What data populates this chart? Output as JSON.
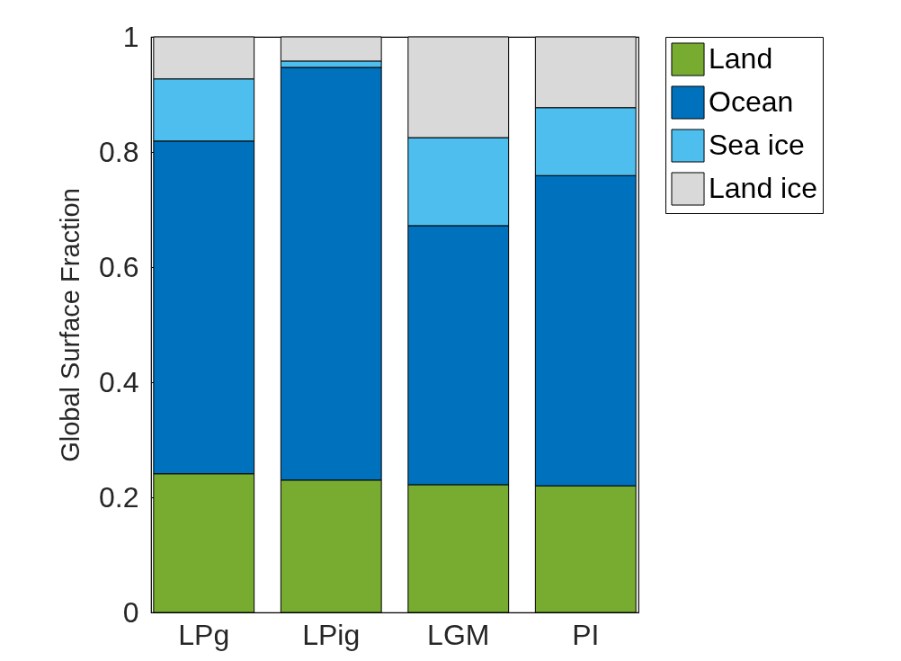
{
  "chart_data": {
    "type": "bar",
    "stacked": true,
    "ylabel": "Global Surface Fraction",
    "categories": [
      "LPg",
      "LPig",
      "LGM",
      "PI"
    ],
    "series": [
      {
        "name": "Land",
        "color": "#77ac30",
        "values": [
          0.241,
          0.23,
          0.222,
          0.22
        ]
      },
      {
        "name": "Ocean",
        "color": "#0072bd",
        "values": [
          0.578,
          0.717,
          0.45,
          0.539
        ]
      },
      {
        "name": "Sea ice",
        "color": "#4dbeee",
        "values": [
          0.108,
          0.011,
          0.153,
          0.118
        ]
      },
      {
        "name": "Land ice",
        "color": "#d9d9d9",
        "values": [
          0.073,
          0.042,
          0.175,
          0.123
        ]
      }
    ],
    "ylim": [
      0,
      1
    ],
    "yticks": [
      0,
      0.2,
      0.4,
      0.6,
      0.8,
      1
    ],
    "grid": false,
    "legend": "right"
  }
}
